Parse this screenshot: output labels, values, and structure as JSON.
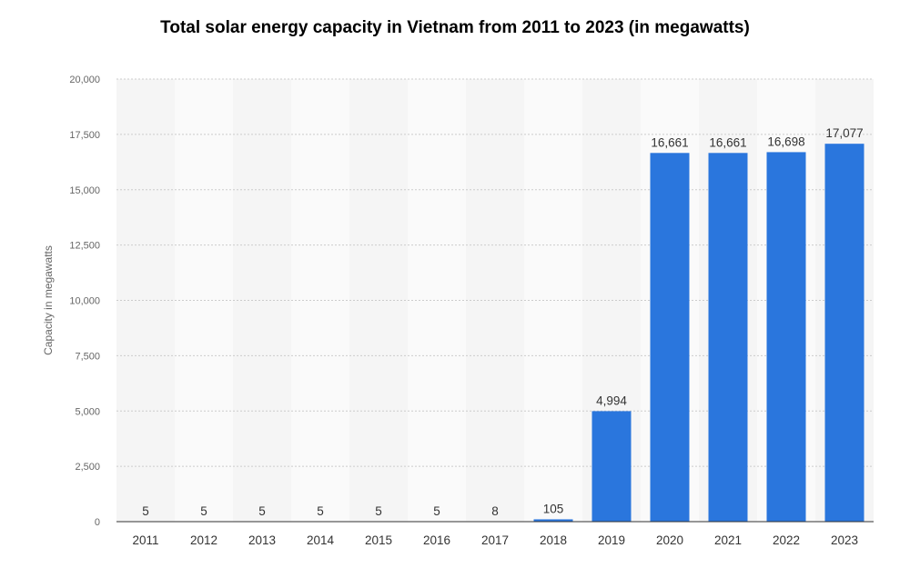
{
  "chart_data": {
    "type": "bar",
    "title": "Total solar energy capacity in Vietnam from 2011 to 2023 (in megawatts)",
    "xlabel": "",
    "ylabel": "Capacity in megawatts",
    "categories": [
      "2011",
      "2012",
      "2013",
      "2014",
      "2015",
      "2016",
      "2017",
      "2018",
      "2019",
      "2020",
      "2021",
      "2022",
      "2023"
    ],
    "values": [
      5,
      5,
      5,
      5,
      5,
      5,
      8,
      105,
      4994,
      16661,
      16661,
      16698,
      17077
    ],
    "value_labels": [
      "5",
      "5",
      "5",
      "5",
      "5",
      "5",
      "8",
      "105",
      "4,994",
      "16,661",
      "16,661",
      "16,698",
      "17,077"
    ],
    "ylim": [
      0,
      20000
    ],
    "yticks": [
      0,
      2500,
      5000,
      7500,
      10000,
      12500,
      15000,
      17500,
      20000
    ],
    "ytick_labels": [
      "0",
      "2,500",
      "5,000",
      "7,500",
      "10,000",
      "12,500",
      "15,000",
      "17,500",
      "20,000"
    ],
    "grid": true,
    "legend": "none",
    "colors": {
      "bar": "#2a76dd",
      "band_a": "#f5f5f5",
      "band_b": "#fafafa",
      "gridline": "#cccccc",
      "axis": "#333333"
    }
  }
}
